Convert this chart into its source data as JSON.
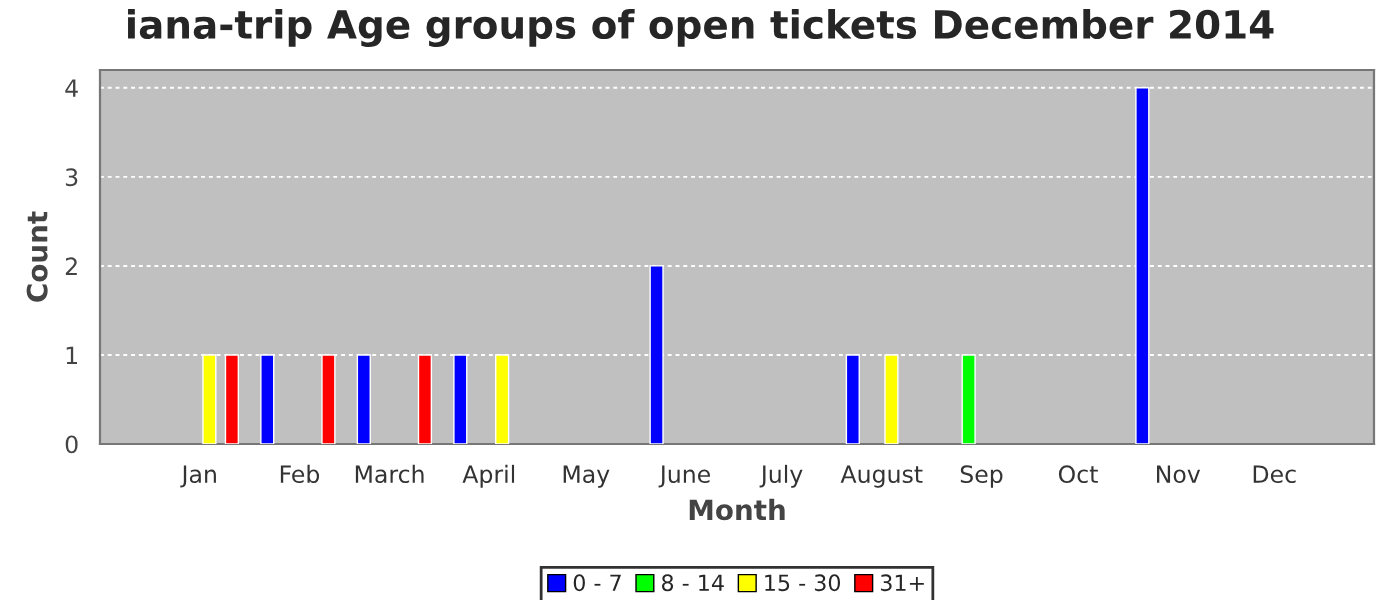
{
  "chart_data": {
    "type": "bar",
    "title": "iana-trip Age groups of open tickets December 2014",
    "xlabel": "Month",
    "ylabel": "Count",
    "series": [
      {
        "name": "0 - 7",
        "color": "#0000ff",
        "x": [
          "2014-01-22",
          "2014-02-21",
          "2014-03-23",
          "2014-05-23",
          "2014-07-23",
          "2014-10-21"
        ],
        "values": [
          1,
          1,
          1,
          2,
          1,
          4
        ]
      },
      {
        "name": "8 - 14",
        "color": "#00ff00",
        "x": [
          "2014-08-28"
        ],
        "values": [
          1
        ]
      },
      {
        "name": "15 - 30",
        "color": "#ffff00",
        "x": [
          "2014-01-04",
          "2014-04-05",
          "2014-08-04"
        ],
        "values": [
          1,
          1,
          1
        ]
      },
      {
        "name": "31+",
        "color": "#ff0000",
        "x": [
          "2014-01-11",
          "2014-02-10",
          "2014-03-12"
        ],
        "values": [
          1,
          1,
          1
        ]
      }
    ],
    "xlim": [
      "2013-12-01",
      "2015-01-01"
    ],
    "xticks": [
      {
        "value": "2014-01-01",
        "label": "Jan"
      },
      {
        "value": "2014-02-01",
        "label": "Feb"
      },
      {
        "value": "2014-03-01",
        "label": "March"
      },
      {
        "value": "2014-04-01",
        "label": "April"
      },
      {
        "value": "2014-05-01",
        "label": "May"
      },
      {
        "value": "2014-06-01",
        "label": "June"
      },
      {
        "value": "2014-07-01",
        "label": "July"
      },
      {
        "value": "2014-08-01",
        "label": "August"
      },
      {
        "value": "2014-09-01",
        "label": "Sep"
      },
      {
        "value": "2014-10-01",
        "label": "Oct"
      },
      {
        "value": "2014-11-01",
        "label": "Nov"
      },
      {
        "value": "2014-12-01",
        "label": "Dec"
      }
    ],
    "ylim": [
      0,
      4.2
    ],
    "yticks": [
      0,
      1,
      2,
      3,
      4
    ],
    "grid": "y",
    "legend": "bottom"
  }
}
